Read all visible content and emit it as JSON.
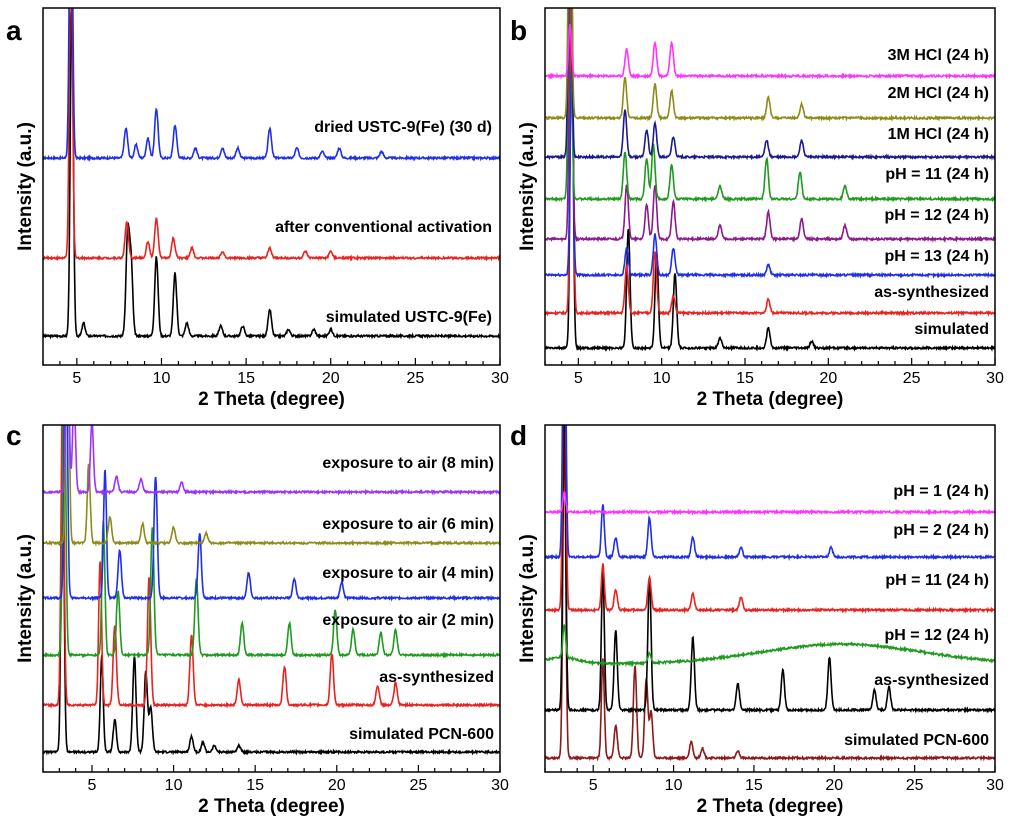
{
  "chart_data": [
    {
      "panel": "a",
      "type": "line",
      "xlabel": "2 Theta (degree)",
      "ylabel": "Intensity (a.u.)",
      "xlim": [
        3,
        30
      ],
      "xticks": [
        5,
        10,
        15,
        20,
        25,
        30
      ],
      "series": [
        {
          "name": "simulated USTC-9(Fe)",
          "color": "#000000",
          "peaks": [
            [
              4.7,
              1.0
            ],
            [
              5.4,
              0.04
            ],
            [
              8.0,
              0.3
            ],
            [
              8.2,
              0.22
            ],
            [
              9.7,
              0.24
            ],
            [
              10.8,
              0.19
            ],
            [
              11.5,
              0.04
            ],
            [
              13.5,
              0.03
            ],
            [
              14.8,
              0.03
            ],
            [
              16.4,
              0.08
            ],
            [
              17.5,
              0.02
            ],
            [
              19.0,
              0.02
            ],
            [
              20.0,
              0.02
            ]
          ]
        },
        {
          "name": "after conventional activation",
          "color": "#e8231f",
          "peaks": [
            [
              4.65,
              1.0
            ],
            [
              7.95,
              0.11
            ],
            [
              9.2,
              0.05
            ],
            [
              9.7,
              0.12
            ],
            [
              10.7,
              0.06
            ],
            [
              11.8,
              0.03
            ],
            [
              13.6,
              0.02
            ],
            [
              16.4,
              0.03
            ],
            [
              18.5,
              0.02
            ],
            [
              20.0,
              0.02
            ]
          ]
        },
        {
          "name": "dried USTC-9(Fe) (30 d)",
          "color": "#1f2fe6",
          "peaks": [
            [
              4.65,
              1.0
            ],
            [
              7.9,
              0.09
            ],
            [
              8.5,
              0.04
            ],
            [
              9.2,
              0.06
            ],
            [
              9.7,
              0.15
            ],
            [
              10.8,
              0.1
            ],
            [
              12.0,
              0.03
            ],
            [
              13.6,
              0.03
            ],
            [
              14.5,
              0.03
            ],
            [
              16.4,
              0.09
            ],
            [
              18.0,
              0.03
            ],
            [
              19.5,
              0.02
            ],
            [
              20.5,
              0.03
            ],
            [
              23.0,
              0.02
            ]
          ]
        }
      ]
    },
    {
      "panel": "b",
      "type": "line",
      "xlabel": "2 Theta (degree)",
      "ylabel": "Intensity (a.u.)",
      "xlim": [
        3,
        30
      ],
      "xticks": [
        5,
        10,
        15,
        20,
        25,
        30
      ],
      "series": [
        {
          "name": "simulated",
          "color": "#000000",
          "peaks": [
            [
              4.6,
              1.0
            ],
            [
              8.0,
              0.35
            ],
            [
              9.7,
              0.28
            ],
            [
              10.8,
              0.22
            ],
            [
              13.5,
              0.03
            ],
            [
              16.4,
              0.06
            ],
            [
              19.0,
              0.02
            ]
          ]
        },
        {
          "name": "as-synthesized",
          "color": "#e8231f",
          "peaks": [
            [
              4.6,
              1.0
            ],
            [
              7.9,
              0.14
            ],
            [
              9.6,
              0.18
            ],
            [
              10.7,
              0.05
            ],
            [
              16.4,
              0.04
            ]
          ]
        },
        {
          "name": "pH = 13 (24 h)",
          "color": "#1f2fe6",
          "peaks": [
            [
              4.6,
              0.6
            ],
            [
              7.9,
              0.08
            ],
            [
              9.6,
              0.12
            ],
            [
              10.7,
              0.08
            ],
            [
              16.4,
              0.03
            ]
          ]
        },
        {
          "name": "pH = 12 (24 h)",
          "color": "#8b1a8b",
          "peaks": [
            [
              4.55,
              1.0
            ],
            [
              7.9,
              0.16
            ],
            [
              9.1,
              0.1
            ],
            [
              9.6,
              0.16
            ],
            [
              10.7,
              0.11
            ],
            [
              13.5,
              0.04
            ],
            [
              16.4,
              0.08
            ],
            [
              18.4,
              0.06
            ],
            [
              21.0,
              0.04
            ]
          ]
        },
        {
          "name": "pH = 11 (24 h)",
          "color": "#1f9a1f",
          "peaks": [
            [
              4.5,
              1.0
            ],
            [
              7.8,
              0.14
            ],
            [
              9.1,
              0.12
            ],
            [
              9.5,
              0.16
            ],
            [
              10.6,
              0.1
            ],
            [
              13.5,
              0.04
            ],
            [
              16.3,
              0.12
            ],
            [
              18.3,
              0.08
            ],
            [
              21.0,
              0.04
            ]
          ]
        },
        {
          "name": "1M HCl (24 h)",
          "color": "#1a1a8c",
          "peaks": [
            [
              4.5,
              1.0
            ],
            [
              7.8,
              0.14
            ],
            [
              9.1,
              0.08
            ],
            [
              9.6,
              0.1
            ],
            [
              10.7,
              0.06
            ],
            [
              16.3,
              0.05
            ],
            [
              18.4,
              0.05
            ]
          ]
        },
        {
          "name": "2M HCl (24 h)",
          "color": "#8c8c1a",
          "peaks": [
            [
              4.5,
              1.0
            ],
            [
              7.8,
              0.12
            ],
            [
              9.6,
              0.1
            ],
            [
              10.6,
              0.08
            ],
            [
              16.4,
              0.06
            ],
            [
              18.4,
              0.04
            ]
          ]
        },
        {
          "name": "3M HCl (24 h)",
          "color": "#ff33ff",
          "peaks": [
            [
              4.5,
              0.15
            ],
            [
              7.9,
              0.08
            ],
            [
              9.6,
              0.1
            ],
            [
              10.6,
              0.1
            ]
          ]
        }
      ]
    },
    {
      "panel": "c",
      "type": "line",
      "xlabel": "2 Theta (degree)",
      "ylabel": "Intensity (a.u.)",
      "xlim": [
        2,
        30
      ],
      "xticks": [
        5,
        10,
        15,
        20,
        25,
        30
      ],
      "series": [
        {
          "name": "simulated PCN-600",
          "color": "#000000",
          "peaks": [
            [
              3.2,
              1.0
            ],
            [
              5.6,
              0.3
            ],
            [
              6.4,
              0.1
            ],
            [
              7.6,
              0.3
            ],
            [
              8.3,
              0.25
            ],
            [
              8.6,
              0.14
            ],
            [
              11.1,
              0.05
            ],
            [
              11.8,
              0.03
            ],
            [
              12.5,
              0.02
            ],
            [
              14.0,
              0.02
            ]
          ]
        },
        {
          "name": "as-synthesized",
          "color": "#e8231f",
          "peaks": [
            [
              3.2,
              1.0
            ],
            [
              5.5,
              0.45
            ],
            [
              6.4,
              0.25
            ],
            [
              8.5,
              0.4
            ],
            [
              11.1,
              0.22
            ],
            [
              14.0,
              0.08
            ],
            [
              16.8,
              0.12
            ],
            [
              19.7,
              0.16
            ],
            [
              22.5,
              0.06
            ],
            [
              23.6,
              0.07
            ]
          ]
        },
        {
          "name": "exposure to air (2 min)",
          "color": "#1f9a1f",
          "peaks": [
            [
              3.3,
              1.0
            ],
            [
              5.7,
              0.42
            ],
            [
              6.6,
              0.2
            ],
            [
              8.7,
              0.4
            ],
            [
              11.4,
              0.24
            ],
            [
              14.2,
              0.1
            ],
            [
              17.1,
              0.1
            ],
            [
              19.9,
              0.14
            ],
            [
              21.0,
              0.08
            ],
            [
              22.7,
              0.07
            ],
            [
              23.6,
              0.08
            ]
          ]
        },
        {
          "name": "exposure to air (4 min)",
          "color": "#1f2fe6",
          "peaks": [
            [
              3.4,
              1.0
            ],
            [
              5.8,
              0.4
            ],
            [
              6.7,
              0.15
            ],
            [
              8.9,
              0.38
            ],
            [
              11.6,
              0.2
            ],
            [
              14.6,
              0.08
            ],
            [
              17.4,
              0.06
            ],
            [
              20.3,
              0.05
            ]
          ]
        },
        {
          "name": "exposure to air (6 min)",
          "color": "#8c8c1a",
          "peaks": [
            [
              3.5,
              1.0
            ],
            [
              4.8,
              0.25
            ],
            [
              6.1,
              0.08
            ],
            [
              8.1,
              0.06
            ],
            [
              10.0,
              0.05
            ],
            [
              12.0,
              0.03
            ]
          ]
        },
        {
          "name": "exposure to air (8 min)",
          "color": "#9933ff",
          "peaks": [
            [
              3.5,
              0.6
            ],
            [
              3.9,
              0.3
            ],
            [
              5.0,
              0.22
            ],
            [
              6.5,
              0.05
            ],
            [
              8.0,
              0.04
            ],
            [
              10.5,
              0.03
            ]
          ]
        }
      ]
    },
    {
      "panel": "d",
      "type": "line",
      "xlabel": "2 Theta (degree)",
      "ylabel": "Intensity (a.u.)",
      "xlim": [
        2,
        30
      ],
      "xticks": [
        5,
        10,
        15,
        20,
        25,
        30
      ],
      "series": [
        {
          "name": "simulated PCN-600",
          "color": "#8b1a1a",
          "peaks": [
            [
              3.2,
              1.0
            ],
            [
              5.6,
              0.3
            ],
            [
              6.4,
              0.1
            ],
            [
              7.6,
              0.28
            ],
            [
              8.3,
              0.24
            ],
            [
              8.6,
              0.14
            ],
            [
              11.1,
              0.05
            ],
            [
              11.8,
              0.03
            ],
            [
              14.0,
              0.02
            ]
          ]
        },
        {
          "name": "as-synthesized",
          "color": "#000000",
          "peaks": [
            [
              3.2,
              1.0
            ],
            [
              5.6,
              0.42
            ],
            [
              6.4,
              0.24
            ],
            [
              8.5,
              0.4
            ],
            [
              11.2,
              0.22
            ],
            [
              14.0,
              0.08
            ],
            [
              16.8,
              0.12
            ],
            [
              19.7,
              0.16
            ],
            [
              22.5,
              0.06
            ],
            [
              23.4,
              0.07
            ]
          ]
        },
        {
          "name": "pH = 12 (24 h)",
          "color": "#1f9a1f",
          "peaks": [
            [
              3.2,
              0.1
            ],
            [
              8.5,
              0.03
            ]
          ]
        },
        {
          "name": "pH = 11 (24 h)",
          "color": "#e8231f",
          "peaks": [
            [
              3.2,
              1.0
            ],
            [
              5.6,
              0.14
            ],
            [
              6.4,
              0.06
            ],
            [
              8.5,
              0.1
            ],
            [
              11.2,
              0.05
            ],
            [
              14.2,
              0.04
            ]
          ]
        },
        {
          "name": "pH = 2 (24 h)",
          "color": "#1f2fe6",
          "peaks": [
            [
              3.2,
              1.0
            ],
            [
              5.6,
              0.16
            ],
            [
              6.4,
              0.06
            ],
            [
              8.5,
              0.12
            ],
            [
              11.2,
              0.06
            ],
            [
              14.2,
              0.03
            ],
            [
              19.8,
              0.03
            ]
          ]
        },
        {
          "name": "pH = 1 (24 h)",
          "color": "#ff33ff",
          "peaks": [
            [
              3.2,
              0.06
            ]
          ]
        }
      ]
    }
  ]
}
